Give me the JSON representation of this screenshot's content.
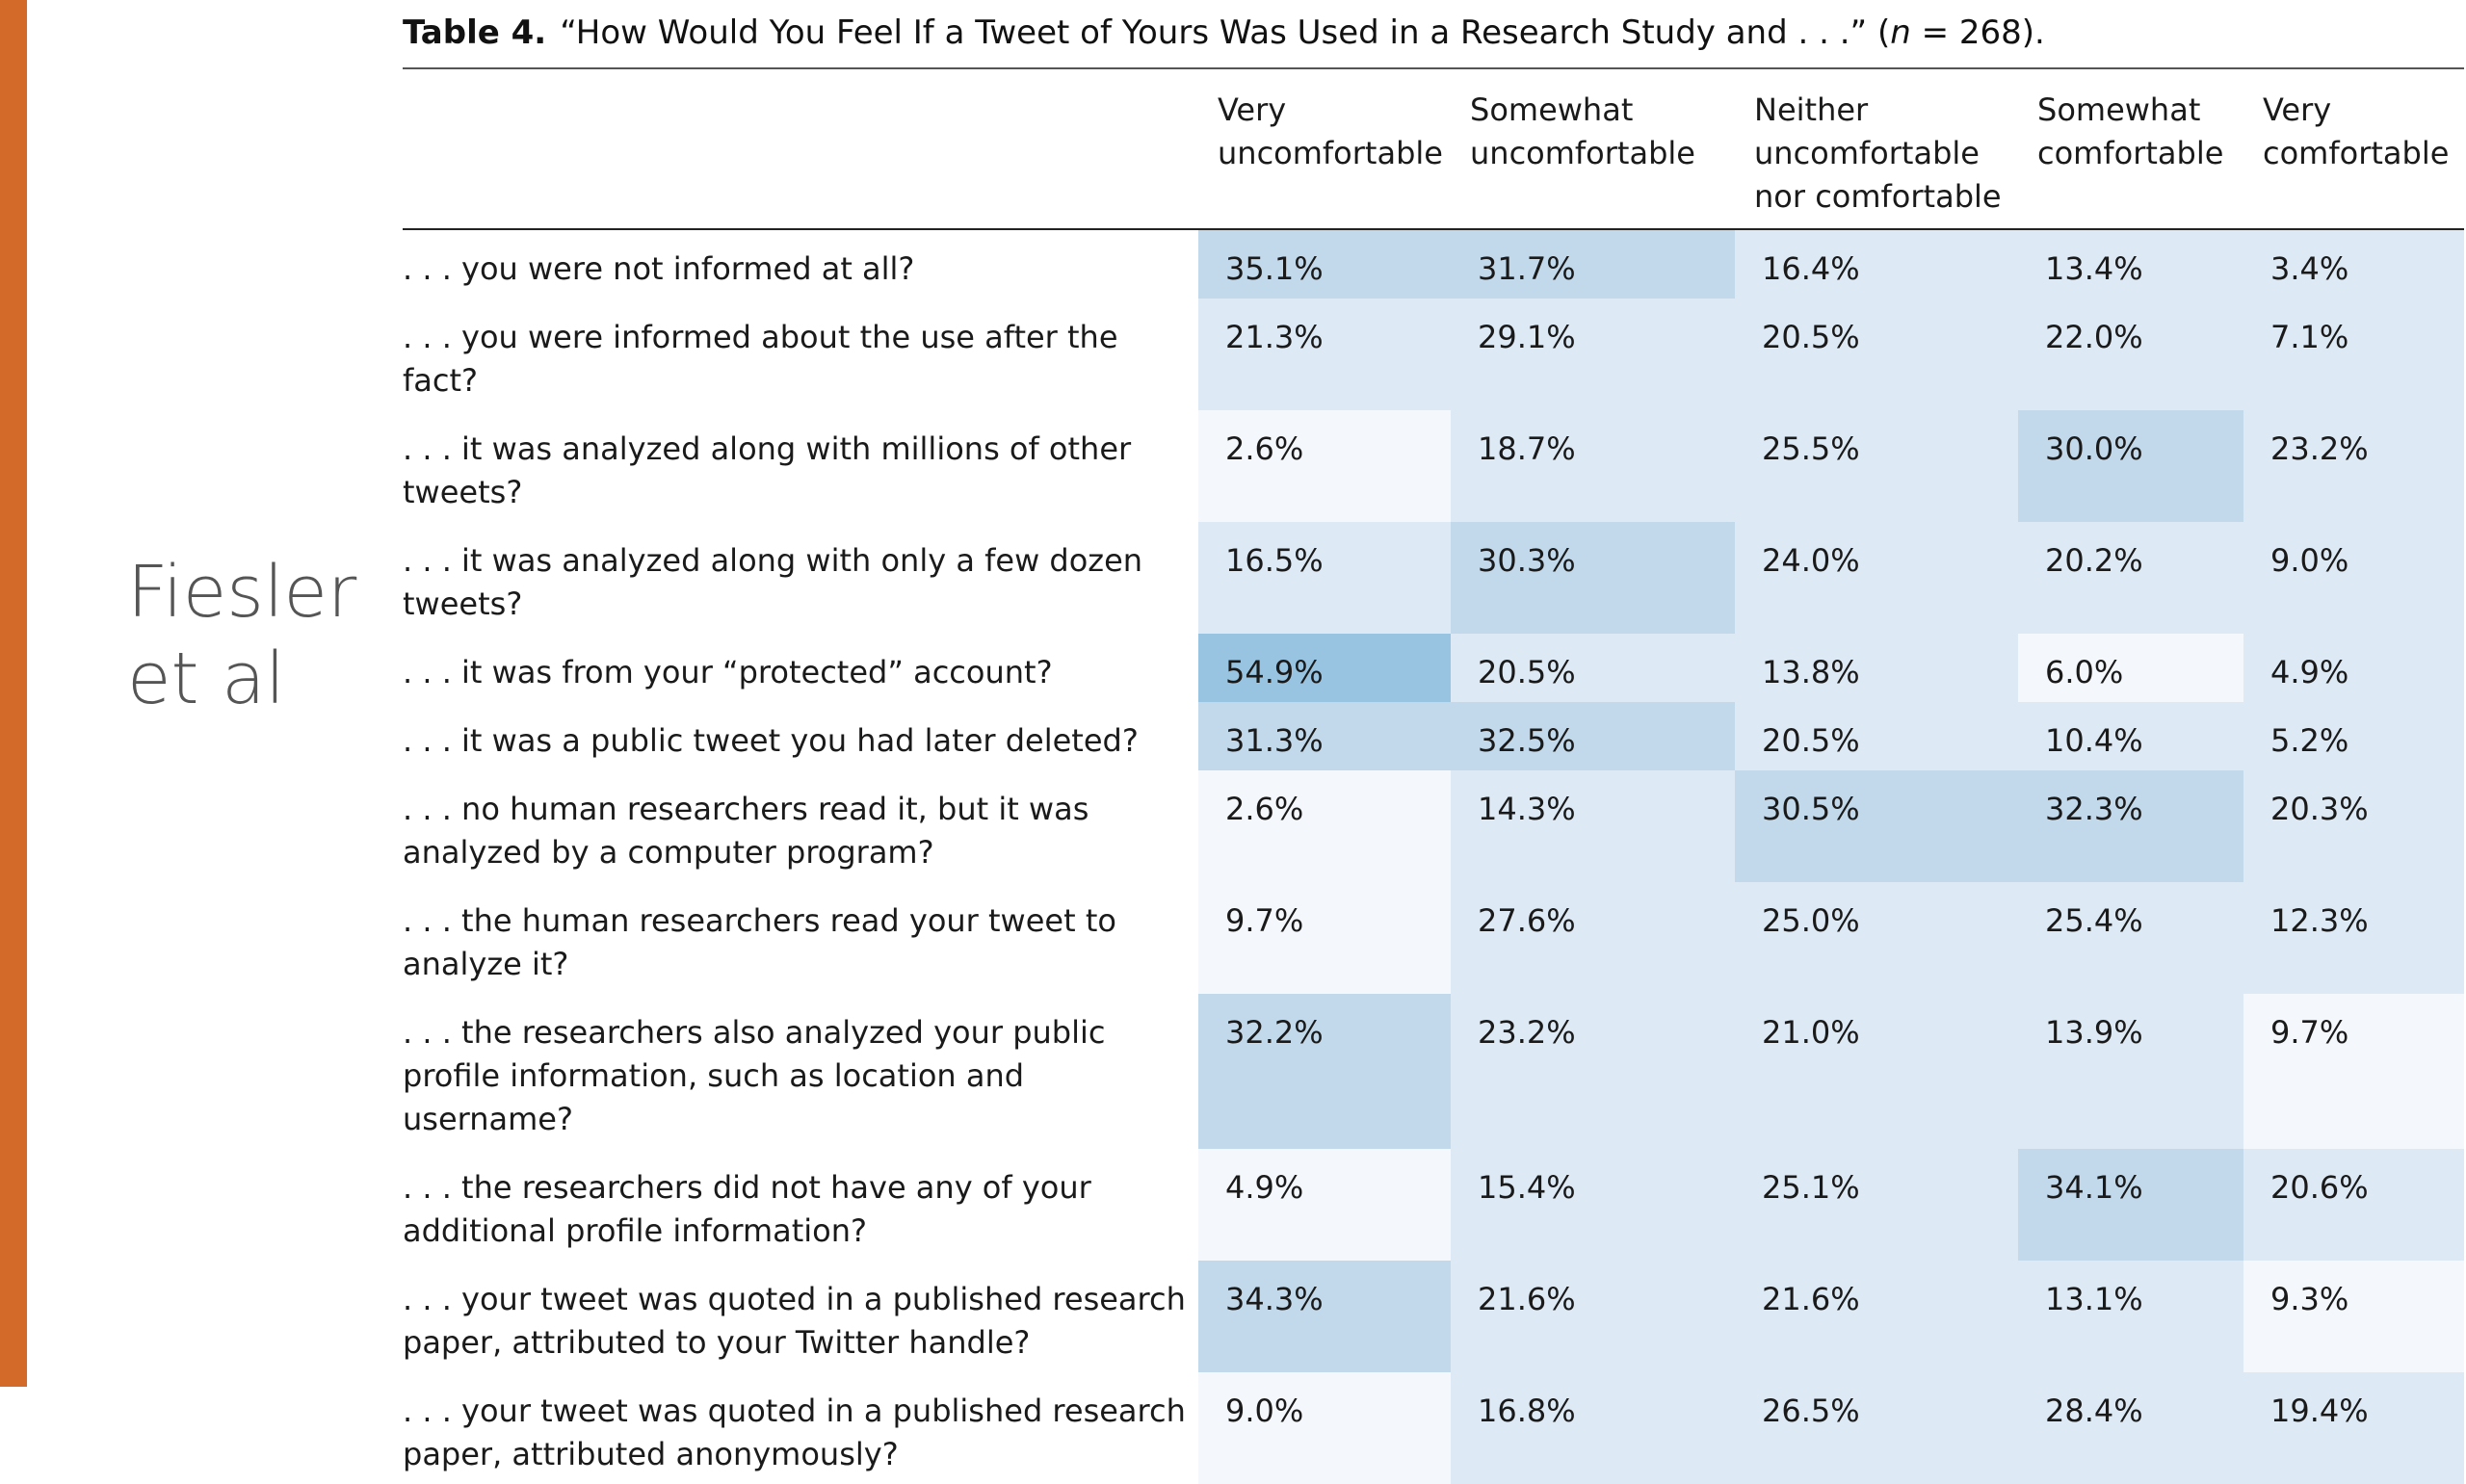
{
  "accent_color": "#d46a2a",
  "side_label": [
    "Fiesler",
    "et al"
  ],
  "caption": {
    "label": "Table 4.",
    "text": "“How Would You Feel If a Tweet of Yours Was Used in a Research Study and . . .” (",
    "n_var": "n",
    "n_rest": " = 268)."
  },
  "table": {
    "headers": [
      "",
      "Very uncomfortable",
      "Somewhat uncomfortable",
      "Neither uncomfortable nor comfortable",
      "Somewhat comfortable",
      "Very comfortable"
    ],
    "rows": [
      {
        "label": ". . . you were not informed at all?",
        "values": [
          "35.1%",
          "31.7%",
          "16.4%",
          "13.4%",
          "3.4%"
        ],
        "shades": [
          2,
          2,
          1,
          1,
          1
        ]
      },
      {
        "label": ". . . you were informed about the use after the fact?",
        "values": [
          "21.3%",
          "29.1%",
          "20.5%",
          "22.0%",
          "7.1%"
        ],
        "shades": [
          1,
          1,
          1,
          1,
          1
        ]
      },
      {
        "label": ". . . it was analyzed along with millions of other tweets?",
        "values": [
          "2.6%",
          "18.7%",
          "25.5%",
          "30.0%",
          "23.2%"
        ],
        "shades": [
          0,
          1,
          1,
          2,
          1
        ]
      },
      {
        "label": ". . . it was analyzed along with only a few dozen tweets?",
        "values": [
          "16.5%",
          "30.3%",
          "24.0%",
          "20.2%",
          "9.0%"
        ],
        "shades": [
          1,
          2,
          1,
          1,
          1
        ]
      },
      {
        "label": ". . . it was from your “protected” account?",
        "values": [
          "54.9%",
          "20.5%",
          "13.8%",
          "6.0%",
          "4.9%"
        ],
        "shades": [
          3,
          1,
          1,
          0,
          1
        ]
      },
      {
        "label": ". . . it was a public tweet you had later deleted?",
        "values": [
          "31.3%",
          "32.5%",
          "20.5%",
          "10.4%",
          "5.2%"
        ],
        "shades": [
          2,
          2,
          1,
          1,
          1
        ]
      },
      {
        "label": ". . . no human researchers read it, but it was analyzed by a computer program?",
        "values": [
          "2.6%",
          "14.3%",
          "30.5%",
          "32.3%",
          "20.3%"
        ],
        "shades": [
          0,
          1,
          2,
          2,
          1
        ]
      },
      {
        "label": ". . . the human researchers read your tweet to analyze it?",
        "values": [
          "9.7%",
          "27.6%",
          "25.0%",
          "25.4%",
          "12.3%"
        ],
        "shades": [
          0,
          1,
          1,
          1,
          1
        ]
      },
      {
        "label": ". . . the researchers also analyzed your public profile information, such as location and username?",
        "values": [
          "32.2%",
          "23.2%",
          "21.0%",
          "13.9%",
          "9.7%"
        ],
        "shades": [
          2,
          1,
          1,
          1,
          0
        ]
      },
      {
        "label": ". . . the researchers did not have any of your additional profile information?",
        "values": [
          "4.9%",
          "15.4%",
          "25.1%",
          "34.1%",
          "20.6%"
        ],
        "shades": [
          0,
          1,
          1,
          2,
          1
        ]
      },
      {
        "label": ". . . your tweet was quoted in a published research paper, attributed to your Twitter handle?",
        "values": [
          "34.3%",
          "21.6%",
          "21.6%",
          "13.1%",
          "9.3%"
        ],
        "shades": [
          2,
          1,
          1,
          1,
          0
        ]
      },
      {
        "label": ". . . your tweet was quoted in a published research paper, attributed anonymously?",
        "values": [
          "9.0%",
          "16.8%",
          "26.5%",
          "28.4%",
          "19.4%"
        ],
        "shades": [
          0,
          1,
          1,
          1,
          1
        ]
      }
    ]
  }
}
